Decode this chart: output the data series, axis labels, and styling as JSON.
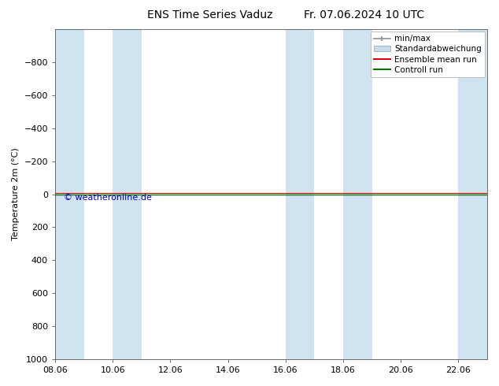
{
  "title_left": "ENS Time Series Vaduz",
  "title_right": "Fr. 07.06.2024 10 UTC",
  "ylabel": "Temperature 2m (°C)",
  "watermark": "© weatheronline.de",
  "watermark_color": "#0000cc",
  "xtick_labels": [
    "08.06",
    "10.06",
    "12.06",
    "14.06",
    "16.06",
    "18.06",
    "20.06",
    "22.06"
  ],
  "xtick_positions": [
    0,
    2,
    4,
    6,
    8,
    10,
    12,
    14
  ],
  "ylim_top": -1000,
  "ylim_bottom": 1000,
  "ytick_values": [
    -800,
    -600,
    -400,
    -200,
    0,
    200,
    400,
    600,
    800,
    1000
  ],
  "xlim": [
    0,
    15
  ],
  "background_color": "#ffffff",
  "plot_bg_color": "#ffffff",
  "shaded_regions": [
    [
      0,
      1
    ],
    [
      2,
      3
    ],
    [
      8,
      9
    ],
    [
      10,
      11
    ],
    [
      14,
      15
    ]
  ],
  "shade_color": "#cfe3f0",
  "minmax_color": "#909090",
  "std_fill_color": "#c8dcea",
  "std_edge_color": "#a0b8cc",
  "ensemble_mean_color": "#dd0000",
  "control_run_color": "#007700",
  "legend_labels": [
    "min/max",
    "Standardabweichung",
    "Ensemble mean run",
    "Controll run"
  ],
  "font_size": 8,
  "title_font_size": 10,
  "zero_line_y": 0,
  "spine_color": "#555555"
}
